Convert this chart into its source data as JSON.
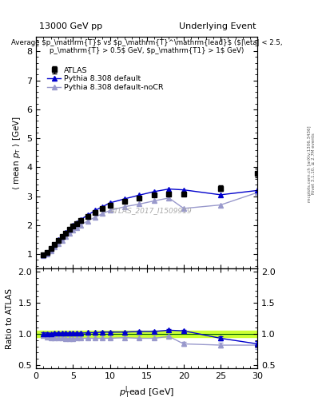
{
  "title_left": "13000 GeV pp",
  "title_right": "Underlying Event",
  "watermark": "ATLAS_2017_I1509919",
  "right_label1": "mcplots.cern.ch [arXiv:1306.3436]",
  "right_label2": "Rivet 3.1.10, ≥ 2.7M events",
  "atlas_x": [
    1.0,
    1.5,
    2.0,
    2.5,
    3.0,
    3.5,
    4.0,
    4.5,
    5.0,
    5.5,
    6.0,
    7.0,
    8.0,
    9.0,
    10.0,
    12.0,
    14.0,
    16.0,
    18.0,
    20.0,
    25.0,
    30.0
  ],
  "atlas_y": [
    0.97,
    1.07,
    1.2,
    1.34,
    1.47,
    1.6,
    1.73,
    1.85,
    1.97,
    2.06,
    2.16,
    2.3,
    2.45,
    2.57,
    2.7,
    2.82,
    2.93,
    3.05,
    3.07,
    3.08,
    3.28,
    3.8
  ],
  "atlas_yerr": [
    0.02,
    0.02,
    0.02,
    0.02,
    0.02,
    0.02,
    0.02,
    0.02,
    0.02,
    0.02,
    0.02,
    0.03,
    0.03,
    0.03,
    0.04,
    0.04,
    0.05,
    0.05,
    0.06,
    0.07,
    0.1,
    0.15
  ],
  "pythia_default_x": [
    1.0,
    1.5,
    2.0,
    2.5,
    3.0,
    3.5,
    4.0,
    4.5,
    5.0,
    5.5,
    6.0,
    7.0,
    8.0,
    9.0,
    10.0,
    12.0,
    14.0,
    16.0,
    18.0,
    20.0,
    25.0,
    30.0
  ],
  "pythia_default_y": [
    0.97,
    1.07,
    1.2,
    1.35,
    1.49,
    1.62,
    1.75,
    1.87,
    1.99,
    2.09,
    2.19,
    2.35,
    2.51,
    2.64,
    2.77,
    2.91,
    3.04,
    3.16,
    3.25,
    3.22,
    3.05,
    3.2
  ],
  "pythia_noCR_x": [
    1.0,
    1.5,
    2.0,
    2.5,
    3.0,
    3.5,
    4.0,
    4.5,
    5.0,
    5.5,
    6.0,
    7.0,
    8.0,
    9.0,
    10.0,
    12.0,
    14.0,
    16.0,
    18.0,
    20.0,
    25.0,
    30.0
  ],
  "pythia_noCR_y": [
    0.94,
    1.02,
    1.13,
    1.25,
    1.37,
    1.48,
    1.6,
    1.71,
    1.82,
    1.91,
    2.0,
    2.15,
    2.28,
    2.4,
    2.51,
    2.64,
    2.73,
    2.84,
    2.94,
    2.58,
    2.7,
    3.13
  ],
  "ratio_default_y": [
    1.0,
    1.0,
    1.0,
    1.01,
    1.01,
    1.01,
    1.01,
    1.01,
    1.01,
    1.01,
    1.01,
    1.02,
    1.02,
    1.03,
    1.03,
    1.03,
    1.04,
    1.04,
    1.06,
    1.05,
    0.93,
    0.84
  ],
  "ratio_default_yerr": [
    0.02,
    0.02,
    0.01,
    0.01,
    0.01,
    0.01,
    0.01,
    0.01,
    0.01,
    0.01,
    0.01,
    0.01,
    0.01,
    0.01,
    0.01,
    0.01,
    0.01,
    0.01,
    0.02,
    0.02,
    0.03,
    0.05
  ],
  "ratio_noCR_y": [
    0.97,
    0.95,
    0.94,
    0.93,
    0.93,
    0.93,
    0.92,
    0.92,
    0.92,
    0.93,
    0.93,
    0.93,
    0.93,
    0.93,
    0.93,
    0.94,
    0.93,
    0.93,
    0.96,
    0.84,
    0.82,
    0.82
  ],
  "ratio_noCR_yerr": [
    0.02,
    0.02,
    0.01,
    0.01,
    0.01,
    0.01,
    0.01,
    0.01,
    0.01,
    0.01,
    0.01,
    0.01,
    0.01,
    0.01,
    0.01,
    0.01,
    0.01,
    0.01,
    0.02,
    0.03,
    0.04,
    0.06
  ],
  "color_atlas": "#000000",
  "color_pythia_default": "#0000cc",
  "color_pythia_noCR": "#9999cc",
  "color_band": "#ccff33",
  "color_band_edge": "#88cc00",
  "ylim_main": [
    0.5,
    8.5
  ],
  "ylim_ratio": [
    0.45,
    2.05
  ],
  "yticks_main": [
    1,
    2,
    3,
    4,
    5,
    6,
    7,
    8
  ],
  "yticks_ratio": [
    0.5,
    1.0,
    1.5,
    2.0
  ],
  "xlim": [
    0,
    30
  ],
  "xticks": [
    0,
    5,
    10,
    15,
    20,
    25,
    30
  ]
}
